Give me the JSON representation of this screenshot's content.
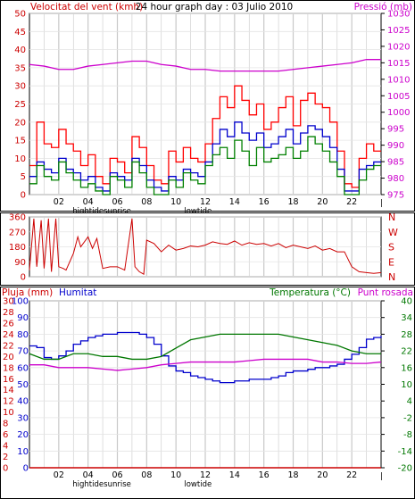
{
  "panels": {
    "wind": {
      "left_title": "Velocitat del vent (kmh)",
      "center_title": "24 hour graph day : 03 Julio 2010",
      "right_title": "Pressió (mb)"
    },
    "direction": {
      "right_labels": [
        "N",
        "W",
        "S",
        "E",
        "N"
      ]
    },
    "weather": {
      "left_title": "Pluja (mm)",
      "left_title2": "Humitat",
      "right_title": "Temperatura (°C)",
      "right_title2": "Punt rosada"
    }
  },
  "colors": {
    "wind_gust": "#ff0000",
    "wind_avg": "#0000cc",
    "wind_green": "#008000",
    "pressure": "#cc00cc",
    "direction": "#cc0000",
    "humidity": "#0000cc",
    "temperature": "#007700",
    "dewpoint": "#cc00cc",
    "rain": "#cc0000",
    "grid": "#c8c8c8"
  },
  "chart_data": [
    {
      "type": "line",
      "name": "wind",
      "title": "24 hour graph day : 03 Julio 2010",
      "ylabel": "Velocitat del vent (kmh)",
      "y2label": "Pressió (mb)",
      "x_ticks": [
        "02",
        "04",
        "06",
        "08",
        "10",
        "12",
        "14",
        "16",
        "18",
        "20",
        "22"
      ],
      "x_annotations": [
        {
          "x": 4,
          "label": "hightide"
        },
        {
          "x": 6,
          "label": "sunrise"
        },
        {
          "x": 11.5,
          "label": "lowtide"
        }
      ],
      "xlim": [
        0,
        24
      ],
      "ylim": [
        0,
        50
      ],
      "y_ticks": [
        0,
        5,
        10,
        15,
        20,
        25,
        30,
        35,
        40,
        45,
        50
      ],
      "y2lim": [
        975,
        1030
      ],
      "y2_ticks": [
        975,
        980,
        985,
        990,
        995,
        1000,
        1005,
        1010,
        1015,
        1020,
        1025,
        1030
      ],
      "series": [
        {
          "role": "gust",
          "x": [
            0,
            0.5,
            1,
            1.5,
            2,
            2.5,
            3,
            3.5,
            4,
            4.5,
            5,
            5.5,
            6,
            6.5,
            7,
            7.5,
            8,
            8.5,
            9,
            9.5,
            10,
            10.5,
            11,
            11.5,
            12,
            12.5,
            13,
            13.5,
            14,
            14.5,
            15,
            15.5,
            16,
            16.5,
            17,
            17.5,
            18,
            18.5,
            19,
            19.5,
            20,
            20.5,
            21,
            21.5,
            22,
            22.5,
            23,
            23.5
          ],
          "y": [
            8,
            20,
            14,
            13,
            18,
            14,
            12,
            8,
            11,
            5,
            3,
            10,
            9,
            6,
            16,
            13,
            8,
            4,
            3,
            12,
            9,
            13,
            10,
            9,
            14,
            21,
            27,
            24,
            30,
            26,
            22,
            25,
            18,
            20,
            24,
            27,
            19,
            26,
            28,
            25,
            24,
            20,
            12,
            3,
            2,
            10,
            14,
            12
          ]
        },
        {
          "role": "average",
          "x": [
            0,
            0.5,
            1,
            1.5,
            2,
            2.5,
            3,
            3.5,
            4,
            4.5,
            5,
            5.5,
            6,
            6.5,
            7,
            7.5,
            8,
            8.5,
            9,
            9.5,
            10,
            10.5,
            11,
            11.5,
            12,
            12.5,
            13,
            13.5,
            14,
            14.5,
            15,
            15.5,
            16,
            16.5,
            17,
            17.5,
            18,
            18.5,
            19,
            19.5,
            20,
            20.5,
            21,
            21.5,
            22,
            22.5,
            23,
            23.5
          ],
          "y": [
            5,
            9,
            7,
            6,
            10,
            7,
            6,
            4,
            5,
            2,
            1,
            6,
            5,
            4,
            10,
            8,
            4,
            2,
            1,
            5,
            4,
            7,
            6,
            5,
            9,
            14,
            18,
            16,
            20,
            17,
            15,
            17,
            13,
            14,
            16,
            18,
            14,
            17,
            19,
            18,
            16,
            13,
            7,
            1,
            1,
            7,
            8,
            9
          ]
        },
        {
          "role": "green",
          "x": [
            0,
            0.5,
            1,
            1.5,
            2,
            2.5,
            3,
            3.5,
            4,
            4.5,
            5,
            5.5,
            6,
            6.5,
            7,
            7.5,
            8,
            8.5,
            9,
            9.5,
            10,
            10.5,
            11,
            11.5,
            12,
            12.5,
            13,
            13.5,
            14,
            14.5,
            15,
            15.5,
            16,
            16.5,
            17,
            17.5,
            18,
            18.5,
            19,
            19.5,
            20,
            20.5,
            21,
            21.5,
            22,
            22.5,
            23,
            23.5
          ],
          "y": [
            3,
            8,
            5,
            4,
            9,
            6,
            4,
            2,
            3,
            1,
            0,
            5,
            4,
            2,
            9,
            6,
            2,
            0,
            0,
            4,
            2,
            6,
            4,
            3,
            8,
            11,
            13,
            10,
            15,
            12,
            8,
            13,
            9,
            10,
            11,
            13,
            10,
            12,
            16,
            14,
            12,
            9,
            5,
            0,
            0,
            4,
            7,
            8
          ]
        },
        {
          "role": "pressure",
          "x": [
            0,
            1,
            2,
            3,
            4,
            5,
            6,
            7,
            8,
            9,
            10,
            11,
            12,
            13,
            14,
            15,
            16,
            17,
            18,
            19,
            20,
            21,
            22,
            23,
            24
          ],
          "y": [
            1014.5,
            1014,
            1013,
            1013,
            1014,
            1014.5,
            1015,
            1015.5,
            1015.5,
            1014.5,
            1014,
            1013,
            1013,
            1012.5,
            1012.5,
            1012.5,
            1012.5,
            1012.5,
            1013,
            1013.5,
            1014,
            1014.5,
            1015,
            1016,
            1016
          ]
        }
      ]
    },
    {
      "type": "line",
      "name": "wind_direction",
      "ylim": [
        0,
        360
      ],
      "y_ticks": [
        0,
        90,
        180,
        270,
        360
      ],
      "xlim": [
        0,
        24
      ],
      "series": [
        {
          "role": "direction",
          "x": [
            0,
            0.3,
            0.5,
            0.8,
            1,
            1.3,
            1.5,
            1.8,
            2,
            2.3,
            2.5,
            3,
            3.3,
            3.5,
            4,
            4.3,
            4.6,
            5,
            5.5,
            6,
            6.5,
            7,
            7.2,
            7.5,
            7.8,
            8,
            8.5,
            9,
            9.5,
            10,
            10.5,
            11,
            11.5,
            12,
            12.5,
            13,
            13.5,
            14,
            14.5,
            15,
            15.5,
            16,
            16.5,
            17,
            17.5,
            18,
            18.5,
            19,
            19.5,
            20,
            20.5,
            21,
            21.5,
            22,
            22.5,
            23,
            23.5,
            24
          ],
          "y": [
            40,
            350,
            60,
            340,
            50,
            350,
            30,
            350,
            60,
            50,
            40,
            140,
            240,
            180,
            240,
            170,
            230,
            50,
            60,
            60,
            40,
            350,
            60,
            30,
            15,
            220,
            200,
            150,
            190,
            160,
            170,
            185,
            180,
            190,
            210,
            200,
            195,
            215,
            190,
            205,
            195,
            200,
            185,
            200,
            175,
            190,
            180,
            170,
            185,
            160,
            170,
            150,
            150,
            60,
            30,
            25,
            20,
            25
          ]
        }
      ]
    },
    {
      "type": "line",
      "name": "weather",
      "ylabel": "Pluja (mm) / Humitat",
      "y2label": "Temperatura (°C) / Punt rosada",
      "x_ticks": [
        "02",
        "04",
        "06",
        "08",
        "10",
        "12",
        "14",
        "16",
        "18",
        "20",
        "22"
      ],
      "x_annotations": [
        {
          "x": 4,
          "label": "hightide"
        },
        {
          "x": 6,
          "label": "sunrise"
        },
        {
          "x": 11.5,
          "label": "lowtide"
        }
      ],
      "xlim": [
        0,
        24
      ],
      "ylim_humidity": [
        0,
        100
      ],
      "y_ticks_humidity": [
        0,
        10,
        20,
        30,
        40,
        50,
        60,
        70,
        80,
        90,
        100
      ],
      "ylim_rain": [
        0,
        30
      ],
      "y_ticks_rain": [
        0,
        2,
        4,
        6,
        8,
        10,
        12,
        14,
        16,
        18,
        20,
        22,
        24,
        26,
        28,
        30
      ],
      "y2lim": [
        -20,
        40
      ],
      "y2_ticks": [
        -20,
        -14,
        -8,
        -2,
        4,
        10,
        16,
        22,
        28,
        34,
        40
      ],
      "series": [
        {
          "role": "humidity",
          "x": [
            0,
            0.5,
            1,
            1.5,
            2,
            2.5,
            3,
            3.5,
            4,
            4.5,
            5,
            5.5,
            6,
            6.5,
            7,
            7.5,
            8,
            8.5,
            9,
            9.5,
            10,
            10.5,
            11,
            11.5,
            12,
            12.5,
            13,
            13.5,
            14,
            14.5,
            15,
            15.5,
            16,
            16.5,
            17,
            17.5,
            18,
            18.5,
            19,
            19.5,
            20,
            20.5,
            21,
            21.5,
            22,
            22.5,
            23,
            23.5,
            24
          ],
          "y": [
            73,
            72,
            66,
            65,
            67,
            70,
            74,
            76,
            78,
            79,
            80,
            80,
            81,
            81,
            81,
            80,
            78,
            74,
            67,
            61,
            58,
            57,
            55,
            54,
            53,
            52,
            51,
            51,
            52,
            52,
            53,
            53,
            53,
            54,
            55,
            57,
            58,
            58,
            59,
            60,
            60,
            61,
            62,
            65,
            68,
            72,
            77,
            78,
            79
          ]
        },
        {
          "role": "temperature",
          "x": [
            0,
            1,
            2,
            3,
            4,
            5,
            6,
            7,
            8,
            9,
            10,
            11,
            12,
            13,
            14,
            15,
            16,
            17,
            18,
            19,
            20,
            21,
            22,
            23,
            24
          ],
          "y": [
            21,
            19,
            19,
            21,
            21,
            20,
            20,
            19,
            19,
            20,
            23,
            26,
            27,
            28,
            28,
            28,
            28,
            28,
            27,
            26,
            25,
            24,
            22,
            21,
            21
          ]
        },
        {
          "role": "dewpoint",
          "x": [
            0,
            1,
            2,
            3,
            4,
            5,
            6,
            7,
            8,
            9,
            10,
            11,
            12,
            13,
            14,
            15,
            16,
            17,
            18,
            19,
            20,
            21,
            22,
            23,
            24
          ],
          "y": [
            17,
            17,
            16,
            16,
            16,
            15.5,
            15,
            15.5,
            16,
            17,
            17.5,
            18,
            18,
            18,
            18,
            18.5,
            19,
            19,
            19,
            19,
            18,
            18,
            17.5,
            17.5,
            18
          ]
        },
        {
          "role": "rain",
          "x": [
            0,
            24
          ],
          "y": [
            0,
            0
          ]
        }
      ]
    }
  ]
}
